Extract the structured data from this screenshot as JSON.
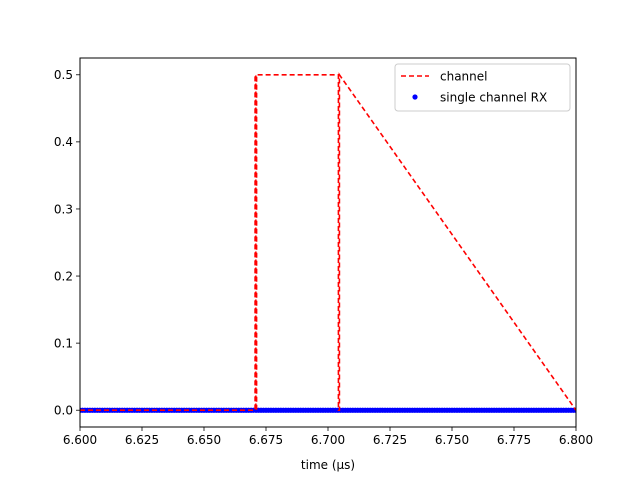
{
  "chart_data": {
    "type": "line",
    "title": "",
    "xlabel": "time (μs)",
    "ylabel": "",
    "xlim": [
      6.6,
      6.8
    ],
    "ylim": [
      -0.025,
      0.525
    ],
    "x_ticks": [
      6.6,
      6.625,
      6.65,
      6.675,
      6.7,
      6.725,
      6.75,
      6.775,
      6.8
    ],
    "x_tick_labels": [
      "6.600",
      "6.625",
      "6.650",
      "6.675",
      "6.700",
      "6.725",
      "6.750",
      "6.775",
      "6.800"
    ],
    "y_ticks": [
      0.0,
      0.1,
      0.2,
      0.3,
      0.4,
      0.5
    ],
    "y_tick_labels": [
      "0.0",
      "0.1",
      "0.2",
      "0.3",
      "0.4",
      "0.5"
    ],
    "grid": false,
    "legend_position": "top-right",
    "series": [
      {
        "name": "channel",
        "style": "dashed-line",
        "color": "#ff0000",
        "x": [
          6.6,
          6.6706,
          6.6706,
          6.6709,
          6.6709,
          6.6712,
          6.6712,
          6.7042,
          6.7042,
          6.7046,
          6.7046,
          6.8
        ],
        "y": [
          0.0,
          0.0,
          0.5,
          0.5,
          0.0,
          0.0,
          0.5,
          0.5,
          0.0,
          0.0,
          0.5,
          0.0
        ]
      },
      {
        "name": "single channel RX",
        "style": "dots",
        "color": "#0000ff",
        "x_start": 6.6,
        "x_end": 6.8,
        "x_step": 0.001,
        "y_constant": 0.0
      }
    ]
  }
}
